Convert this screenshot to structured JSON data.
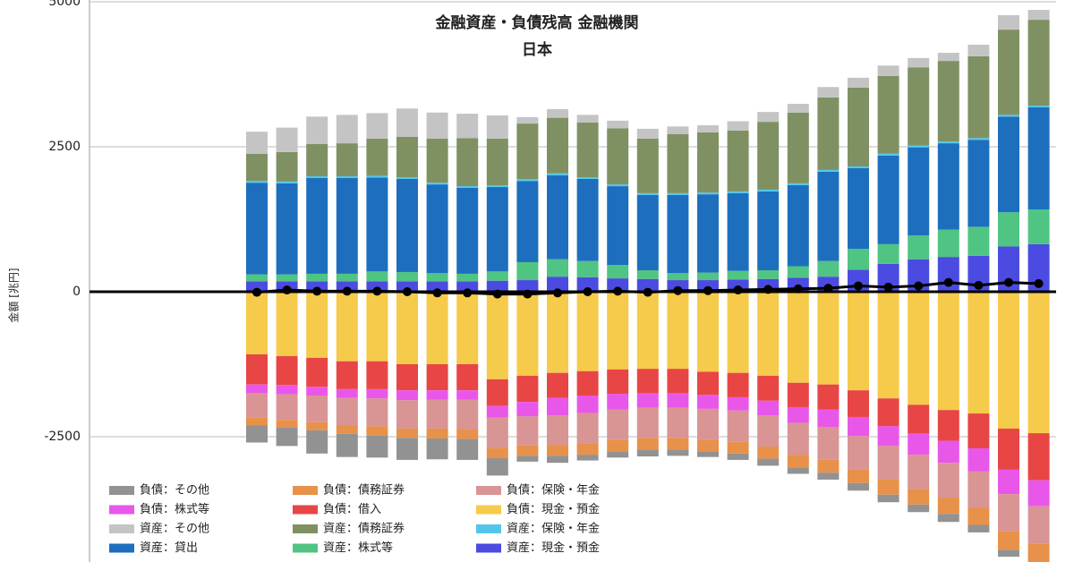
{
  "chart_data": {
    "type": "bar",
    "title": "金融資産・負債残高 金融機関",
    "subtitle": "日本",
    "y_label": "金額 [兆円]",
    "categories": [
      null,
      null,
      null,
      null,
      null,
      null,
      null,
      null,
      null,
      null,
      null,
      null,
      null,
      null,
      null,
      null,
      null,
      null,
      null,
      null,
      null,
      null,
      null,
      null,
      null,
      null,
      null
    ],
    "ylim": [
      -5000,
      5000
    ],
    "yticks": [
      -2500,
      0,
      2500,
      5000
    ],
    "grid": true,
    "stacked": true,
    "series": [
      {
        "name": "負債：その他",
        "color": "#929292",
        "values": [
          -300,
          -320,
          -400,
          -400,
          -380,
          -380,
          -360,
          -360,
          -300,
          -100,
          -120,
          -100,
          -110,
          -120,
          -110,
          -100,
          -110,
          -120,
          -110,
          -120,
          -130,
          -130,
          -130,
          -140,
          -130,
          -120,
          -110
        ]
      },
      {
        "name": "負債：債務証券",
        "color": "#e8914a",
        "values": [
          -130,
          -130,
          -140,
          -150,
          -160,
          -160,
          -170,
          -170,
          -180,
          -180,
          -190,
          -200,
          -200,
          -200,
          -200,
          -200,
          -210,
          -210,
          -220,
          -230,
          -240,
          -260,
          -270,
          -280,
          -300,
          -320,
          -340
        ]
      },
      {
        "name": "負債：保険・年金",
        "color": "#d99494",
        "values": [
          -420,
          -440,
          -460,
          -470,
          -480,
          -490,
          -500,
          -510,
          -520,
          -500,
          -510,
          -520,
          -520,
          -520,
          -520,
          -530,
          -530,
          -540,
          -550,
          -560,
          -570,
          -580,
          -590,
          -600,
          -620,
          -640,
          -650
        ]
      },
      {
        "name": "負債：株式等",
        "color": "#e957e9",
        "values": [
          -150,
          -160,
          -150,
          -150,
          -160,
          -170,
          -160,
          -160,
          -200,
          -250,
          -300,
          -300,
          -270,
          -250,
          -250,
          -240,
          -230,
          -250,
          -270,
          -300,
          -330,
          -340,
          -360,
          -380,
          -400,
          -420,
          -450
        ]
      },
      {
        "name": "負債：借入",
        "color": "#e84545",
        "values": [
          -520,
          -500,
          -500,
          -480,
          -480,
          -450,
          -450,
          -450,
          -460,
          -450,
          -430,
          -420,
          -420,
          -420,
          -420,
          -400,
          -420,
          -430,
          -420,
          -430,
          -460,
          -480,
          -500,
          -530,
          -600,
          -710,
          -810
        ]
      },
      {
        "name": "負債：現金・預金",
        "color": "#f6ca4a",
        "values": [
          -1080,
          -1110,
          -1140,
          -1200,
          -1200,
          -1250,
          -1250,
          -1250,
          -1510,
          -1450,
          -1400,
          -1370,
          -1340,
          -1330,
          -1330,
          -1380,
          -1400,
          -1450,
          -1570,
          -1600,
          -1700,
          -1840,
          -1950,
          -2040,
          -2100,
          -2360,
          -2440
        ]
      },
      {
        "name": "資産：その他",
        "color": "#c4c4c4",
        "values": [
          380,
          420,
          470,
          490,
          440,
          490,
          450,
          420,
          400,
          110,
          150,
          130,
          130,
          170,
          130,
          120,
          160,
          170,
          150,
          180,
          170,
          180,
          160,
          140,
          200,
          250,
          170
        ]
      },
      {
        "name": "資産：債務証券",
        "color": "#7f9163",
        "values": [
          470,
          510,
          560,
          570,
          640,
          695,
          760,
          830,
          805,
          960,
          960,
          945,
          970,
          940,
          1020,
          1040,
          1050,
          1170,
          1220,
          1250,
          1360,
          1340,
          1350,
          1390,
          1410,
          1470,
          1480
        ]
      },
      {
        "name": "資産：保険・年金",
        "color": "#52c6ea",
        "values": [
          30,
          30,
          30,
          30,
          30,
          30,
          30,
          30,
          30,
          30,
          30,
          30,
          30,
          30,
          30,
          30,
          30,
          30,
          30,
          30,
          30,
          30,
          30,
          30,
          30,
          30,
          30
        ]
      },
      {
        "name": "資産：貸出",
        "color": "#1d6fbe",
        "values": [
          1580,
          1570,
          1650,
          1650,
          1620,
          1605,
          1530,
          1480,
          1455,
          1400,
          1450,
          1415,
          1360,
          1300,
          1350,
          1350,
          1340,
          1360,
          1400,
          1540,
          1390,
          1530,
          1520,
          1490,
          1500,
          1650,
          1760
        ]
      },
      {
        "name": "資産：株式等",
        "color": "#4fc483",
        "values": [
          120,
          120,
          130,
          130,
          170,
          160,
          140,
          130,
          160,
          310,
          300,
          280,
          230,
          150,
          120,
          130,
          150,
          150,
          200,
          270,
          360,
          340,
          410,
          470,
          500,
          590,
          600
        ]
      },
      {
        "name": "資産：現金・預金",
        "color": "#4b4be2",
        "values": [
          180,
          180,
          180,
          180,
          180,
          180,
          180,
          180,
          190,
          200,
          260,
          250,
          230,
          220,
          200,
          200,
          210,
          220,
          240,
          260,
          380,
          480,
          560,
          600,
          620,
          780,
          820
        ]
      }
    ],
    "line": {
      "color": "#000000",
      "values": [
        -10,
        30,
        10,
        10,
        10,
        0,
        -20,
        -20,
        -40,
        -40,
        -20,
        0,
        10,
        -10,
        20,
        20,
        30,
        40,
        50,
        60,
        100,
        80,
        100,
        160,
        110,
        160,
        140
      ]
    }
  }
}
